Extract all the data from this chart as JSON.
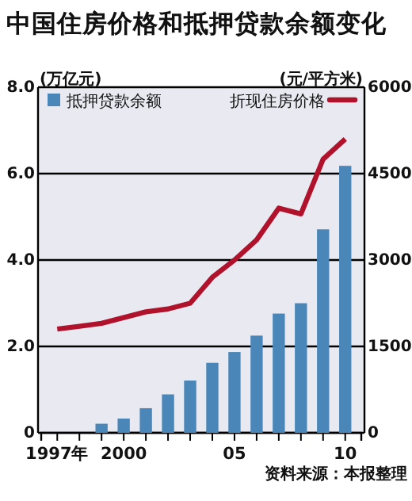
{
  "chart_data": {
    "type": "bar",
    "title": "中国住房价格和抵押贷款余额变化",
    "ylabel": "(万亿元)",
    "y2label": "(元/平方米)",
    "categories": [
      "1997年",
      null,
      null,
      "2000",
      null,
      null,
      null,
      null,
      "05",
      null,
      null,
      null,
      null,
      "10"
    ],
    "series": [
      {
        "name": "抵押贷款余额",
        "color": "#4a86b8",
        "values": [
          null,
          null,
          0.21,
          0.33,
          0.57,
          0.89,
          1.21,
          1.62,
          1.87,
          2.25,
          2.76,
          3.0,
          4.71,
          6.18
        ]
      },
      {
        "name": "折现住房价格",
        "type": "line",
        "axis": "y2",
        "color": "#b0122c",
        "values": [
          1800,
          1850,
          1900,
          2000,
          2100,
          2150,
          2250,
          2700,
          3000,
          3350,
          3900,
          3800,
          4750,
          5100
        ]
      }
    ],
    "ylim": [
      0,
      8
    ],
    "yticks": [
      0,
      {
        "value": 2,
        "label": "2.0"
      },
      {
        "value": 4,
        "label": "4.0"
      },
      {
        "value": 6,
        "label": "6.0"
      },
      {
        "value": 8,
        "label": "8.0"
      }
    ],
    "y2lim": [
      0,
      6000
    ],
    "y2ticks": [
      0,
      1500,
      3000,
      4500,
      6000
    ],
    "grid": "y",
    "legend": "top",
    "marker": "none",
    "line_style": "solid",
    "annotations": [
      "资料来源：本报整理"
    ]
  }
}
